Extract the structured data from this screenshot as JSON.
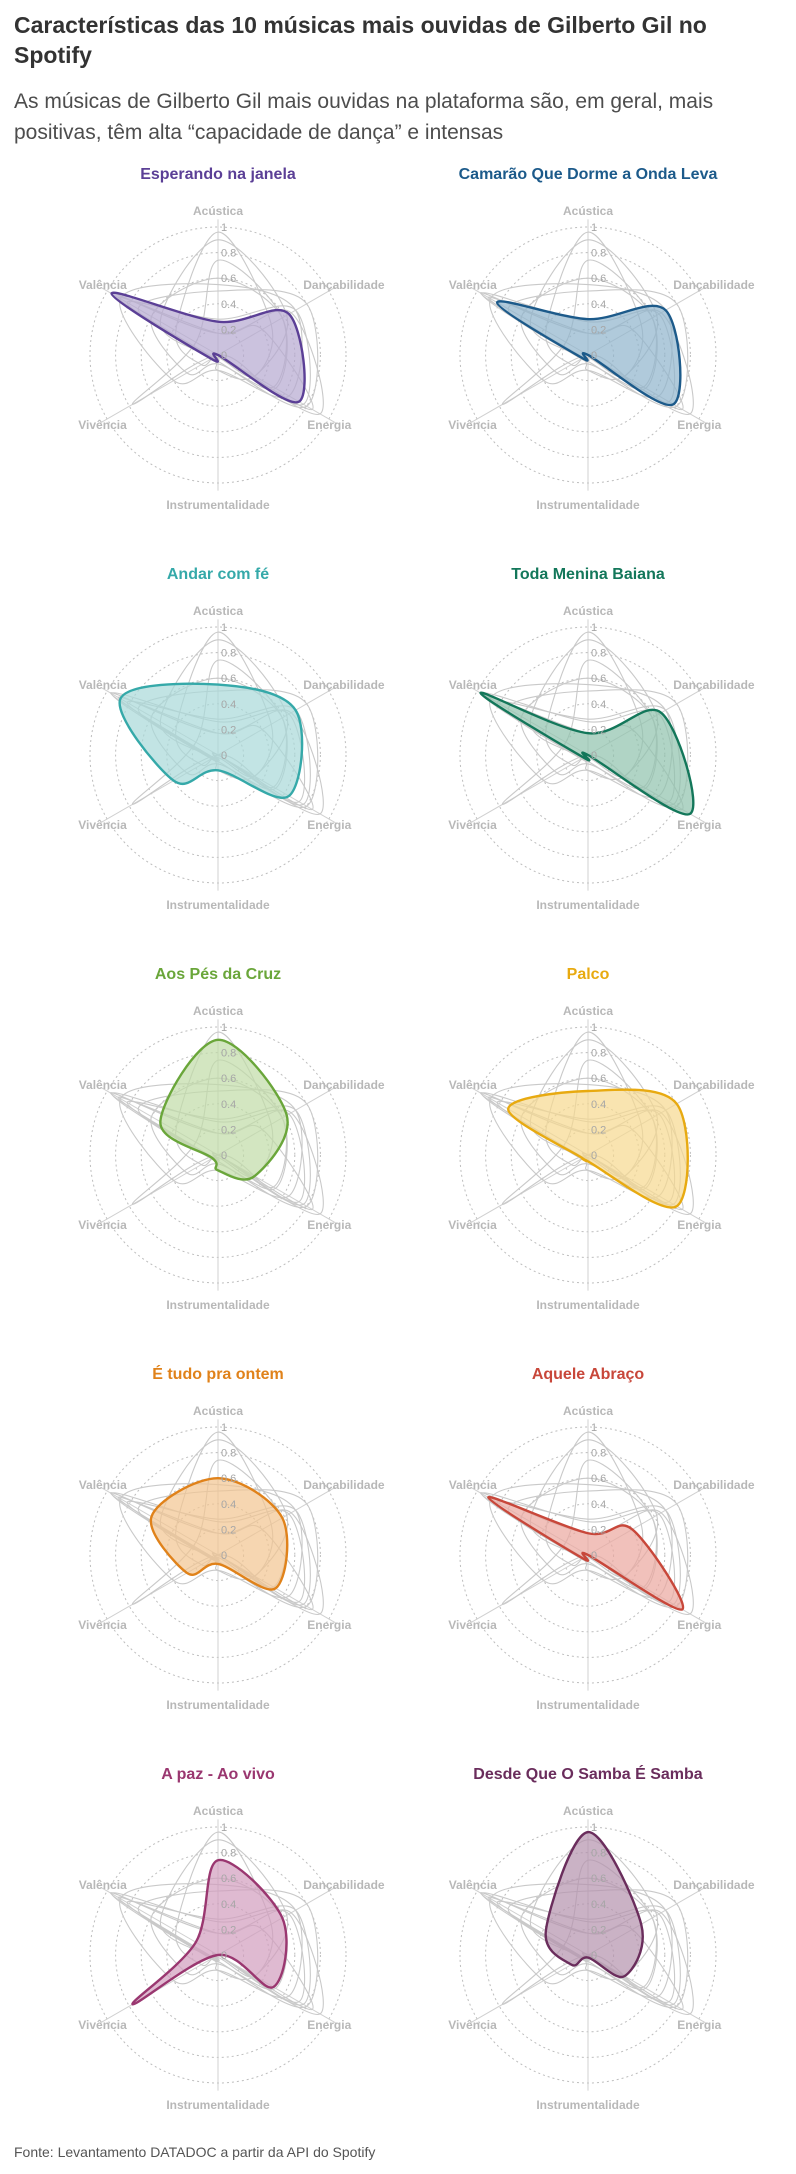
{
  "title": "Características das 10 músicas mais ouvidas de Gilberto Gil no Spotify",
  "subtitle": "As músicas de Gilberto Gil mais ouvidas na plataforma são, em geral, mais positivas, têm alta “capacidade de dança” e intensas",
  "source": "Fonte: Levantamento DATADOC a partir da API do Spotify",
  "chart_data": {
    "type": "radar",
    "axes": [
      "Acústica",
      "Dançabilidade",
      "Energia",
      "Instrumentalidade",
      "Vivência",
      "Valência"
    ],
    "ticks": [
      "0",
      "0.2",
      "0.4",
      "0.6",
      "0.8",
      "1"
    ],
    "rlim": [
      0,
      1
    ],
    "grid": "dotted-circles",
    "background_style": "all songs drawn in light gray behind each highlighted song",
    "series": [
      {
        "name": "Esperando na janela",
        "color": "#5b3f96",
        "fill": "#b5a8d0",
        "values": [
          0.26,
          0.64,
          0.73,
          0.0,
          0.06,
          0.96
        ]
      },
      {
        "name": "Camarão Que Dorme a Onda Leva",
        "color": "#1c5a8a",
        "fill": "#8fb3cc",
        "values": [
          0.28,
          0.7,
          0.77,
          0.0,
          0.05,
          0.82
        ]
      },
      {
        "name": "Andar com fé",
        "color": "#35a9a9",
        "fill": "#a8d8d8",
        "values": [
          0.55,
          0.7,
          0.64,
          0.12,
          0.4,
          0.88
        ]
      },
      {
        "name": "Toda Menina Baiana",
        "color": "#13775a",
        "fill": "#8fc2ac",
        "values": [
          0.17,
          0.66,
          0.92,
          0.0,
          0.04,
          0.97
        ]
      },
      {
        "name": "Aos Pés da Cruz",
        "color": "#6aa63a",
        "fill": "#c0dba6",
        "values": [
          0.9,
          0.62,
          0.33,
          0.12,
          0.05,
          0.52
        ]
      },
      {
        "name": "Palco",
        "color": "#e8aa10",
        "fill": "#f6d98e",
        "values": [
          0.5,
          0.8,
          0.8,
          0.05,
          0.05,
          0.72
        ]
      },
      {
        "name": "É tudo pra ontem",
        "color": "#e0821a",
        "fill": "#f2c490",
        "values": [
          0.6,
          0.58,
          0.52,
          0.07,
          0.28,
          0.6
        ]
      },
      {
        "name": "Aquele Abraço",
        "color": "#c8473a",
        "fill": "#eba79e",
        "values": [
          0.17,
          0.4,
          0.85,
          0.0,
          0.05,
          0.9
        ]
      },
      {
        "name": "A paz - Ao vivo",
        "color": "#9a3770",
        "fill": "#d29cbe",
        "values": [
          0.74,
          0.58,
          0.5,
          0.0,
          0.77,
          0.2
        ]
      },
      {
        "name": "Desde Que O Samba É Samba",
        "color": "#6a2d5c",
        "fill": "#b491ad",
        "values": [
          0.96,
          0.48,
          0.33,
          0.02,
          0.15,
          0.38
        ]
      }
    ]
  }
}
